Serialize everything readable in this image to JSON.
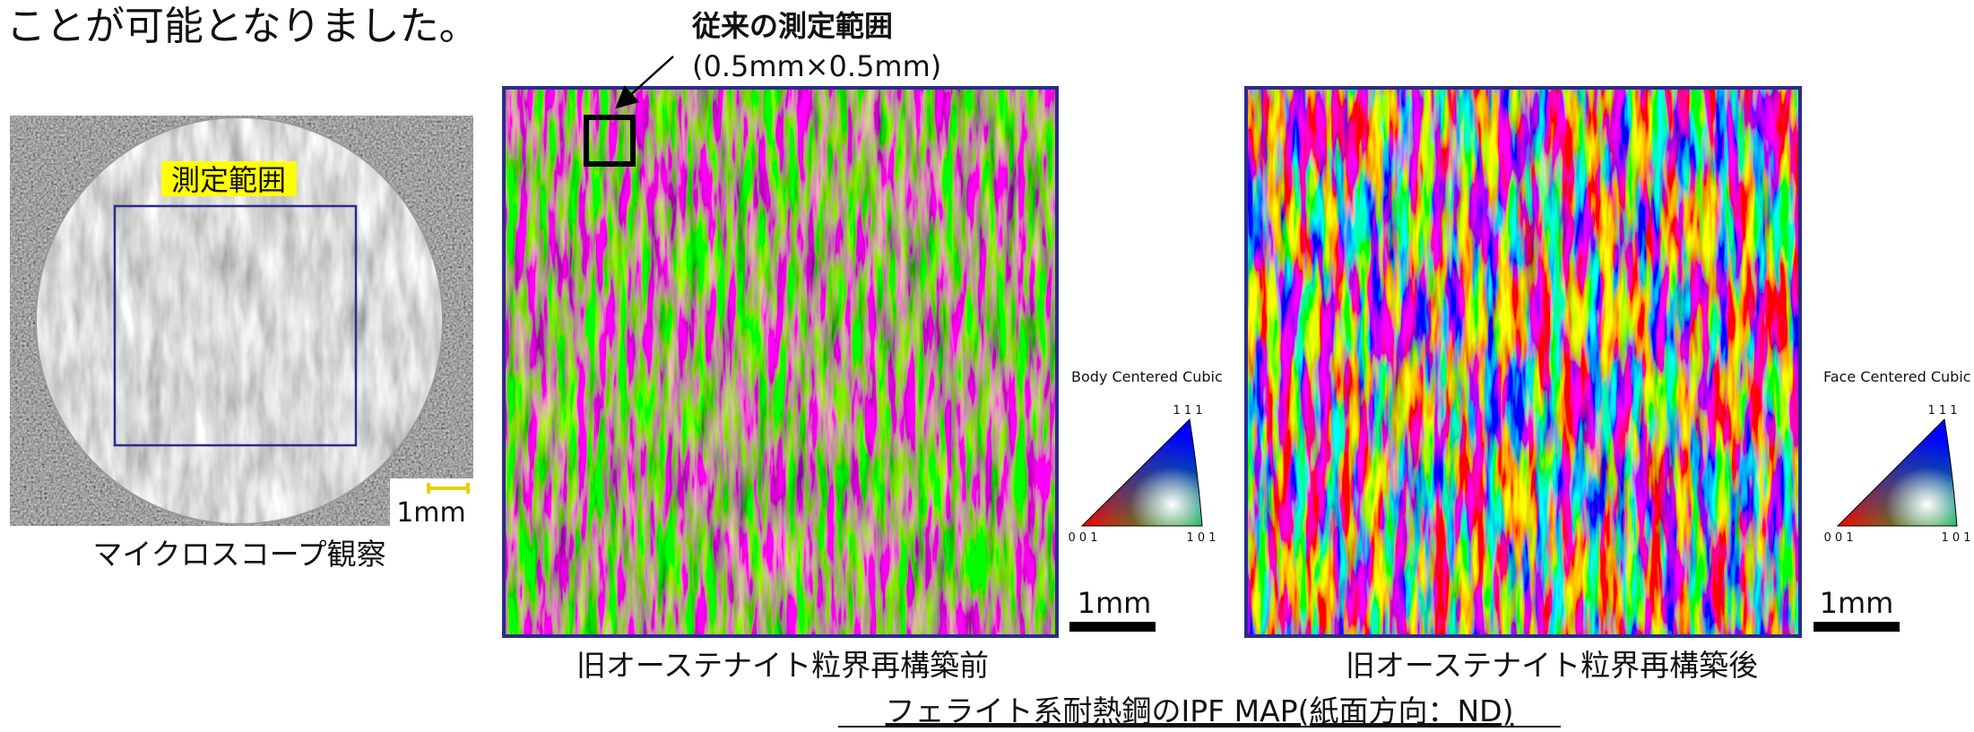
{
  "header": {
    "text": "ことが可能となりました。"
  },
  "microscope": {
    "label": "測定範囲",
    "scale": "1mm",
    "caption": "マイクロスコープ観察"
  },
  "conventional_area": {
    "title": "従来の測定範囲",
    "size": "(0.5mm×0.5mm)"
  },
  "maps": [
    {
      "legend": {
        "title": "Body Centered Cubic",
        "top": "1 1 1",
        "left": "0 0 1",
        "right": "1 0 1"
      },
      "scale": "1mm",
      "caption": "旧オーステナイト粒界再構築前"
    },
    {
      "legend": {
        "title": "Face Centered Cubic",
        "top": "1 1 1",
        "left": "0 0 1",
        "right": "1 0 1"
      },
      "scale": "1mm",
      "caption": "旧オーステナイト粒界再構築後"
    }
  ],
  "figure_caption": "フェライト系耐熱鋼のIPF MAP(紙面方向：ND)"
}
